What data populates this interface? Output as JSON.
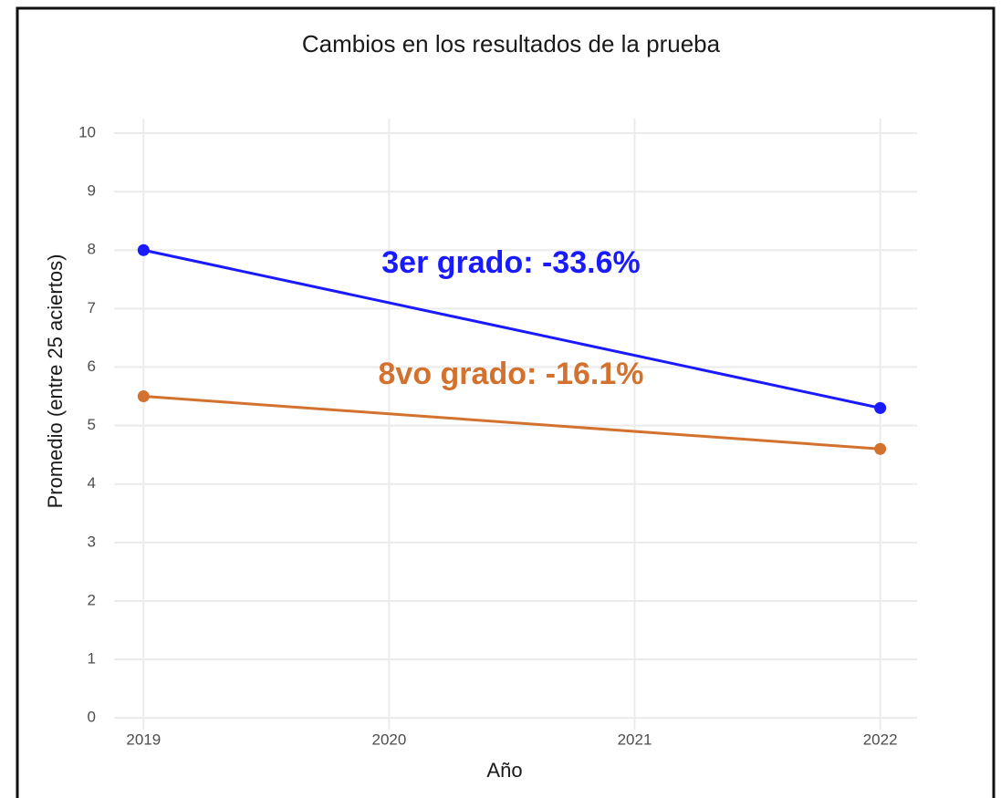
{
  "chart_data": {
    "type": "line",
    "title": "Cambios en los resultados de la prueba",
    "x_label": "Año",
    "y_label": "Promedio (entre 25 aciertos)",
    "x": [
      2019,
      2022
    ],
    "series": [
      {
        "color": "#1a1aff",
        "values": [
          8,
          5.3
        ]
      },
      {
        "color": "#d2722e",
        "values": [
          5.5,
          4.6
        ]
      }
    ],
    "annotations": [
      {
        "text": "3er grado: -33.6%",
        "color": "#1a1aff"
      },
      {
        "text": "8vo grado: -16.1%",
        "color": "#d2722e"
      }
    ],
    "xlim": [
      2018.88,
      2022.15
    ],
    "xticks": [
      2019,
      2020,
      2021,
      2022
    ],
    "ylim": [
      -0.2,
      10.25
    ],
    "yticks": [
      0,
      1,
      2,
      3,
      4,
      5,
      6,
      7,
      8,
      9,
      10
    ],
    "grid": true
  }
}
